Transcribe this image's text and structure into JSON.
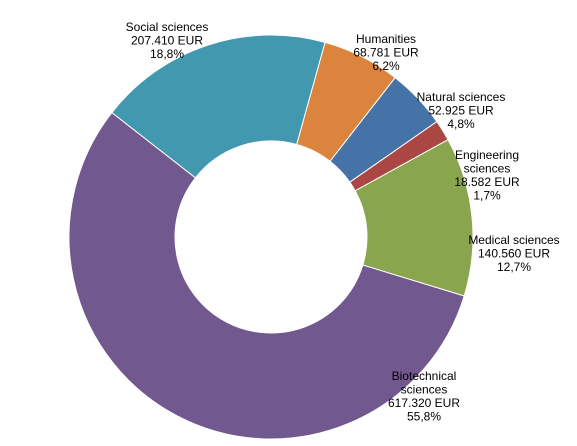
{
  "chart_data": {
    "type": "pie",
    "variant": "donut",
    "title": "",
    "legend": "none",
    "slices": [
      {
        "name": "Social sciences",
        "label_lines": [
          "Social sciences",
          "207.410 EUR",
          "18,8%"
        ],
        "value": 207410,
        "percent": 18.8,
        "color": "#4198AF"
      },
      {
        "name": "Humanities",
        "label_lines": [
          "Humanities",
          "68.781 EUR",
          "6,2%"
        ],
        "value": 68781,
        "percent": 6.2,
        "color": "#DB843D"
      },
      {
        "name": "Natural sciences",
        "label_lines": [
          "Natural  sciences",
          "52.925 EUR",
          "4,8%"
        ],
        "value": 52925,
        "percent": 4.8,
        "color": "#4572A7"
      },
      {
        "name": "Engineering sciences",
        "label_lines": [
          "Engineering",
          "sciences",
          "18.582 EUR",
          "1,7%"
        ],
        "value": 18582,
        "percent": 1.7,
        "color": "#AA4643"
      },
      {
        "name": "Medical sciences",
        "label_lines": [
          "Medical sciences",
          "140.560 EUR",
          "12,7%"
        ],
        "value": 140560,
        "percent": 12.7,
        "color": "#89A54E"
      },
      {
        "name": "Biotechnical sciences",
        "label_lines": [
          "Biotechnical",
          "sciences",
          "617.320 EUR",
          "55,8%"
        ],
        "value": 617320,
        "percent": 55.8,
        "color": "#71588F"
      }
    ]
  }
}
